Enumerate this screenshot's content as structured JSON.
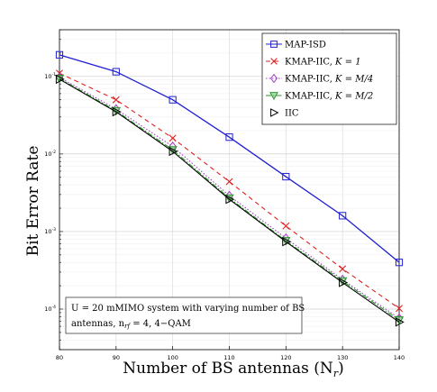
{
  "chart_data": {
    "type": "line",
    "xlabel": "Number of BS antennas (N",
    "xlabel_sub": "r",
    "xlabel_end": ")",
    "ylabel": "Bit Error Rate",
    "x": [
      80,
      90,
      100,
      110,
      120,
      130,
      140
    ],
    "xlim": [
      80,
      140
    ],
    "ylim": [
      3e-05,
      0.4
    ],
    "yscale": "log",
    "grid": true,
    "legend_position": "top-right",
    "series": [
      {
        "name": "MAP-ISD",
        "color": "#1f1fd0",
        "dash": "",
        "marker": "square",
        "values": [
          0.19,
          0.115,
          0.05,
          0.0165,
          0.0051,
          0.0016,
          0.0004
        ]
      },
      {
        "name": "KMAP-IIC, K = 1",
        "color": "#e02020",
        "dash": "5,4",
        "marker": "x",
        "values": [
          0.11,
          0.05,
          0.016,
          0.0044,
          0.00118,
          0.00033,
          0.000102
        ]
      },
      {
        "name": "KMAP-IIC, K = M/4",
        "color": "#a040c0",
        "dash": "1.5,2",
        "marker": "diamond",
        "values": [
          0.097,
          0.038,
          0.0125,
          0.0029,
          0.00082,
          0.00024,
          7.6e-05
        ]
      },
      {
        "name": "KMAP-IIC, K = M/2",
        "color": "#2a9a2a",
        "dash": "6,2,1.5,2",
        "marker": "triangle-down",
        "values": [
          0.094,
          0.036,
          0.0113,
          0.0027,
          0.00076,
          0.00023,
          7.2e-05
        ]
      },
      {
        "name": "IIC",
        "color": "#000000",
        "dash": "",
        "marker": "triangle-right",
        "values": [
          0.092,
          0.035,
          0.0108,
          0.0026,
          0.00074,
          0.00022,
          6.8e-05
        ]
      }
    ],
    "legend_labels": [
      {
        "text": "MAP-ISD",
        "math": ""
      },
      {
        "text": "KMAP-IIC, ",
        "math": "K = 1"
      },
      {
        "text": "KMAP-IIC, ",
        "math": "K = M/4"
      },
      {
        "text": "KMAP-IIC, ",
        "math": "K = M/2"
      },
      {
        "text": "IIC",
        "math": ""
      }
    ],
    "annotation": {
      "line1": "U = 20 mMIMO system with varying number of BS",
      "line2": "antennas, n",
      "line2_sub": "rf",
      "line2_end": " = 4, 4−QAM"
    }
  }
}
